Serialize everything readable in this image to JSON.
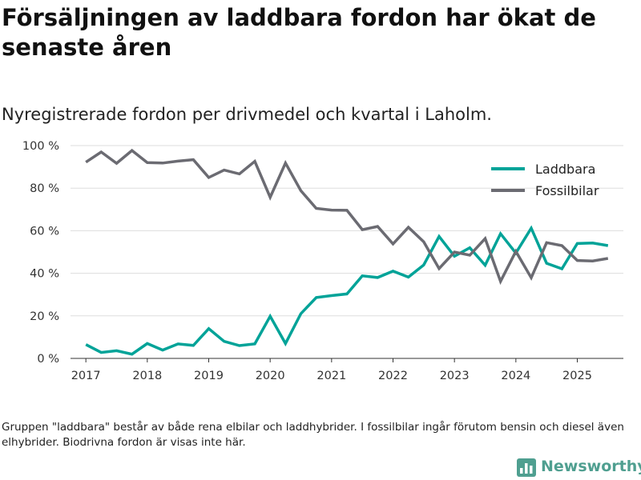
{
  "header": {
    "title": "Försäljningen av laddbara fordon har ökat de senaste åren",
    "subtitle": "Nyregistrerade fordon per drivmedel och kvartal i Laholm."
  },
  "footer": {
    "note": "Gruppen \"laddbara\" består av både rena elbilar och laddhybrider. I fossilbilar ingår förutom bensin och diesel även elhybrider. Biodrivna fordon är visas inte här.",
    "brand": "Newsworthy"
  },
  "colors": {
    "laddbara": "#00a398",
    "fossilbilar": "#6b6b72",
    "grid": "#dddddd",
    "axis": "#333333",
    "brand": "#4f9f90"
  },
  "chart_data": {
    "type": "line",
    "title": "Försäljningen av laddbara fordon har ökat de senaste åren",
    "subtitle": "Nyregistrerade fordon per drivmedel och kvartal i Laholm.",
    "xlabel": "",
    "ylabel": "",
    "x_unit": "year (quarterly)",
    "xlim": [
      2016.75,
      2025.75
    ],
    "ylim": [
      0,
      100
    ],
    "x_ticks": [
      2017,
      2018,
      2019,
      2020,
      2021,
      2022,
      2023,
      2024,
      2025
    ],
    "y_ticks": [
      0,
      20,
      40,
      60,
      80,
      100
    ],
    "y_tick_labels": [
      "0 %",
      "20 %",
      "40 %",
      "60 %",
      "80 %",
      "100 %"
    ],
    "grid": "horizontal",
    "legend_position": "top-right",
    "x": [
      2017.0,
      2017.25,
      2017.5,
      2017.75,
      2018.0,
      2018.25,
      2018.5,
      2018.75,
      2019.0,
      2019.25,
      2019.5,
      2019.75,
      2020.0,
      2020.25,
      2020.5,
      2020.75,
      2021.0,
      2021.25,
      2021.5,
      2021.75,
      2022.0,
      2022.25,
      2022.5,
      2022.75,
      2023.0,
      2023.25,
      2023.5,
      2023.75,
      2024.0,
      2024.25,
      2024.5,
      2024.75,
      2025.0,
      2025.25,
      2025.5
    ],
    "series": [
      {
        "name": "Laddbara",
        "color": "#00a398",
        "values": [
          6.5,
          2.8,
          3.6,
          2.0,
          7.0,
          3.9,
          6.8,
          6.1,
          14.0,
          8.0,
          6.0,
          6.8,
          19.8,
          7.0,
          21.0,
          28.6,
          29.5,
          30.3,
          38.8,
          38.0,
          41.0,
          38.2,
          43.9,
          57.3,
          48.0,
          52.0,
          43.8,
          58.6,
          49.5,
          61.2,
          44.7,
          42.1,
          54.0,
          54.2,
          53.0
        ]
      },
      {
        "name": "Fossilbilar",
        "color": "#6b6b72",
        "values": [
          92.2,
          97.0,
          91.7,
          97.7,
          92.0,
          91.8,
          92.7,
          93.4,
          85.0,
          88.5,
          86.7,
          92.6,
          75.7,
          91.8,
          78.8,
          70.5,
          69.7,
          69.6,
          60.5,
          62.0,
          53.8,
          61.6,
          54.8,
          42.2,
          50.0,
          48.5,
          56.3,
          36.2,
          50.3,
          37.9,
          54.4,
          53.0,
          46.0,
          45.8,
          47.0
        ]
      }
    ]
  }
}
